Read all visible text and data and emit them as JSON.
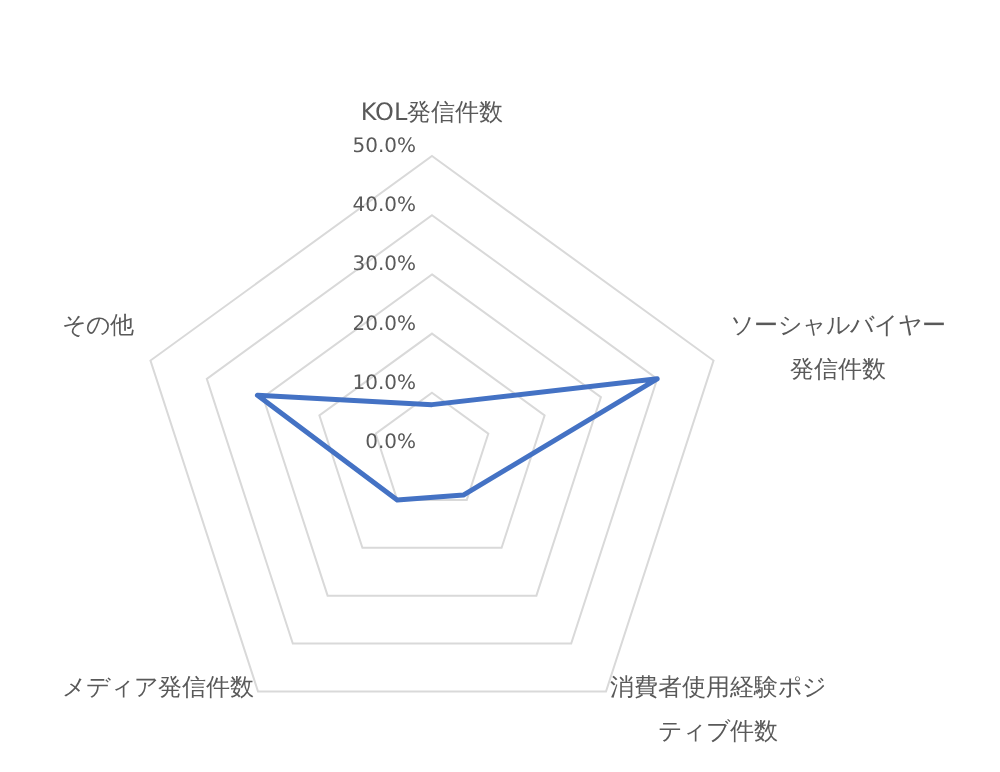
{
  "chart_data": {
    "type": "radar",
    "categories": [
      "KOL発信件数",
      "ソーシャルバイヤー発信件数",
      "消費者使用経験ポジティブ件数",
      "メディア発信件数",
      "その他"
    ],
    "series": [
      {
        "color": "#4472c4",
        "values": [
          8,
          40,
          9,
          10,
          31
        ]
      }
    ],
    "ylim": [
      0,
      50
    ],
    "yticks": [
      {
        "value": 0,
        "label": "0.0%"
      },
      {
        "value": 10,
        "label": "10.0%"
      },
      {
        "value": 20,
        "label": "20.0%"
      },
      {
        "value": 30,
        "label": "30.0%"
      },
      {
        "value": 40,
        "label": "40.0%"
      },
      {
        "value": 50,
        "label": "50.0%"
      }
    ],
    "grid": true,
    "marker": "none",
    "line_style": "solid"
  }
}
